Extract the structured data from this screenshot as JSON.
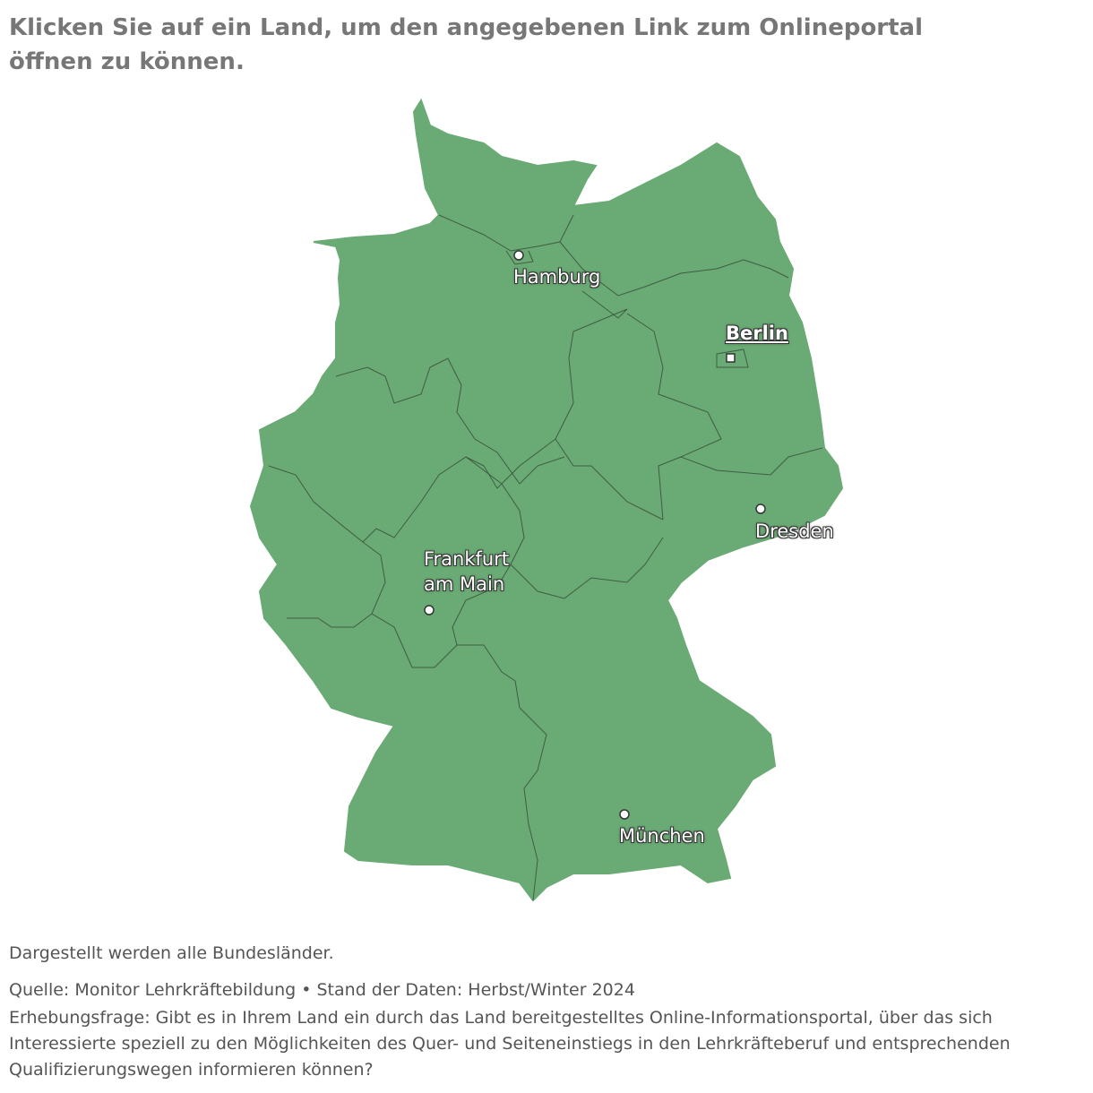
{
  "header": {
    "title": "Klicken Sie auf ein Land, um den angegebenen Link zum Onlineportal öffnen zu können."
  },
  "map": {
    "cities": {
      "hamburg": "Hamburg",
      "berlin": "Berlin",
      "frankfurt": "Frankfurt am Main",
      "dresden": "Dresden",
      "muenchen": "München"
    }
  },
  "footer": {
    "note": "Dargestellt werden alle Bundesländer.",
    "source": "Quelle: Monitor Lehrkräftebildung • Stand der Daten: Herbst/Winter 2024",
    "question": "Erhebungsfrage: Gibt es in Ihrem Land ein durch das Land bereitgestelltes Online-Informationsportal, über das sich Interessierte speziell zu den Möglichkeiten des Quer- und Seiteneinstiegs in den Lehrkräfteberuf und entsprechenden Qualifizierungswegen informieren können?"
  }
}
